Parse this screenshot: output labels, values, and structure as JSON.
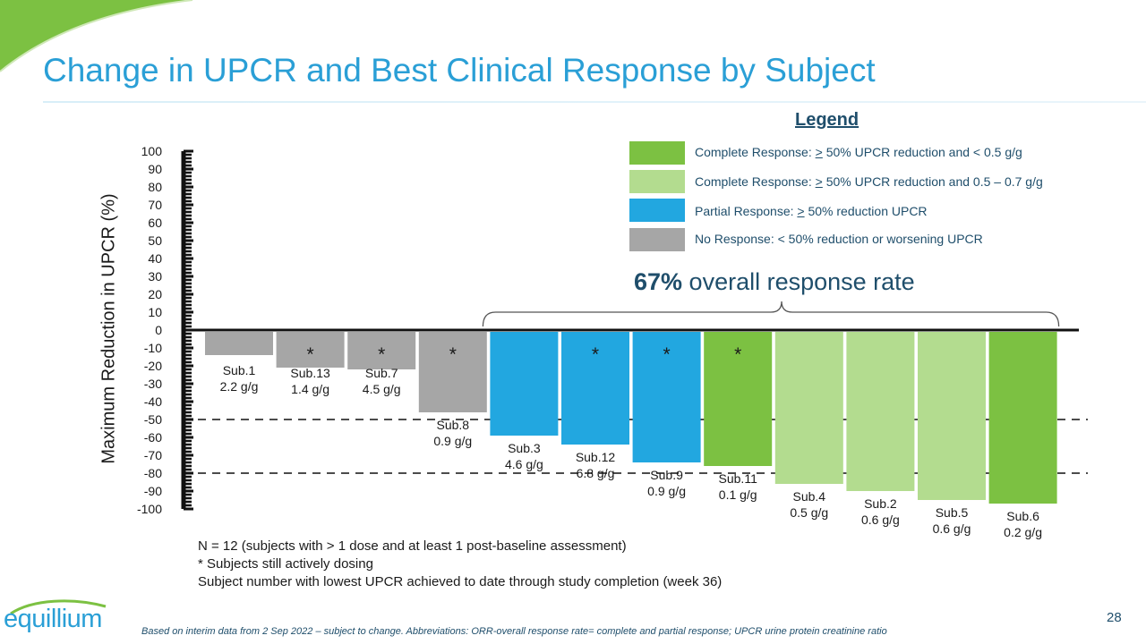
{
  "title": "Change in UPCR and Best Clinical Response by Subject",
  "legend": {
    "heading": "Legend",
    "items": [
      {
        "pre": "Complete Response: ",
        "u": ">",
        "post": " 50% UPCR reduction and < 0.5 g/g",
        "color": "#7cc142"
      },
      {
        "pre": "Complete Response: ",
        "u": ">",
        "post": " 50% UPCR reduction and  0.5 – 0.7 g/g",
        "color": "#b3dc8f"
      },
      {
        "pre": "Partial Response: ",
        "u": ">",
        "post": " 50% reduction UPCR",
        "color": "#22a7e0"
      },
      {
        "pre": "No Response: < 50% reduction or worsening UPCR",
        "u": "",
        "post": "",
        "color": "#a6a6a6"
      }
    ]
  },
  "orr": {
    "percent": "67%",
    "text": " overall response rate"
  },
  "chart_data": {
    "type": "bar",
    "title": "",
    "xlabel": "",
    "ylabel": "Maximum Reduction in UPCR (%)",
    "ylim": [
      -100,
      100
    ],
    "yticks": [
      100,
      90,
      80,
      70,
      60,
      50,
      40,
      30,
      20,
      10,
      0,
      -10,
      -20,
      -30,
      -40,
      -50,
      -60,
      -70,
      -80,
      -90,
      -100
    ],
    "reference_lines": [
      -50,
      -80
    ],
    "series": [
      {
        "name": "Maximum Reduction in UPCR (%)",
        "values": [
          -14,
          -21,
          -22,
          -46,
          -59,
          -64,
          -74,
          -76,
          -86,
          -90,
          -95,
          -97
        ]
      }
    ],
    "bars": [
      {
        "subject": "Sub.1",
        "upcr": "2.2 g/g",
        "value": -14,
        "response": "No Response",
        "dosing": false,
        "color": "#a6a6a6"
      },
      {
        "subject": "Sub.13",
        "upcr": "1.4 g/g",
        "value": -21,
        "response": "No Response",
        "dosing": true,
        "color": "#a6a6a6"
      },
      {
        "subject": "Sub.7",
        "upcr": "4.5 g/g",
        "value": -22,
        "response": "No Response",
        "dosing": true,
        "color": "#a6a6a6"
      },
      {
        "subject": "Sub.8",
        "upcr": "0.9 g/g",
        "value": -46,
        "response": "No Response",
        "dosing": true,
        "color": "#a6a6a6"
      },
      {
        "subject": "Sub.3",
        "upcr": "4.6 g/g",
        "value": -59,
        "response": "Partial Response",
        "dosing": false,
        "color": "#22a7e0"
      },
      {
        "subject": "Sub.12",
        "upcr": "6.8 g/g",
        "value": -64,
        "response": "Partial Response",
        "dosing": true,
        "color": "#22a7e0"
      },
      {
        "subject": "Sub.9",
        "upcr": "0.9 g/g",
        "value": -74,
        "response": "Partial Response",
        "dosing": true,
        "color": "#22a7e0"
      },
      {
        "subject": "Sub.11",
        "upcr": "0.1 g/g",
        "value": -76,
        "response": "Complete Response < 0.5 g/g",
        "dosing": true,
        "color": "#7cc142"
      },
      {
        "subject": "Sub.4",
        "upcr": "0.5 g/g",
        "value": -86,
        "response": "Complete Response 0.5-0.7 g/g",
        "dosing": false,
        "color": "#b3dc8f"
      },
      {
        "subject": "Sub.2",
        "upcr": "0.6 g/g",
        "value": -90,
        "response": "Complete Response 0.5-0.7 g/g",
        "dosing": false,
        "color": "#b3dc8f"
      },
      {
        "subject": "Sub.5",
        "upcr": "0.6 g/g",
        "value": -95,
        "response": "Complete Response 0.5-0.7 g/g",
        "dosing": false,
        "color": "#b3dc8f"
      },
      {
        "subject": "Sub.6",
        "upcr": "0.2 g/g",
        "value": -97,
        "response": "Complete Response < 0.5 g/g",
        "dosing": false,
        "color": "#7cc142"
      }
    ],
    "dosing_marker": "*"
  },
  "notes": {
    "line1": "N = 12 (subjects with > 1 dose and at least 1 post-baseline assessment)",
    "line2": "* Subjects still actively dosing",
    "line3": "Subject number with lowest UPCR achieved to date through study completion (week 36)"
  },
  "footnote": "Based on interim data from 2 Sep 2022 – subject to change. Abbreviations: ORR-overall response rate= complete and partial response; UPCR urine protein creatinine ratio",
  "page_number": "28",
  "logo_text": "equillium",
  "colors": {
    "title": "#2a9fd6",
    "dark": "#1f4e6b",
    "green_decor": "#7cc142"
  }
}
